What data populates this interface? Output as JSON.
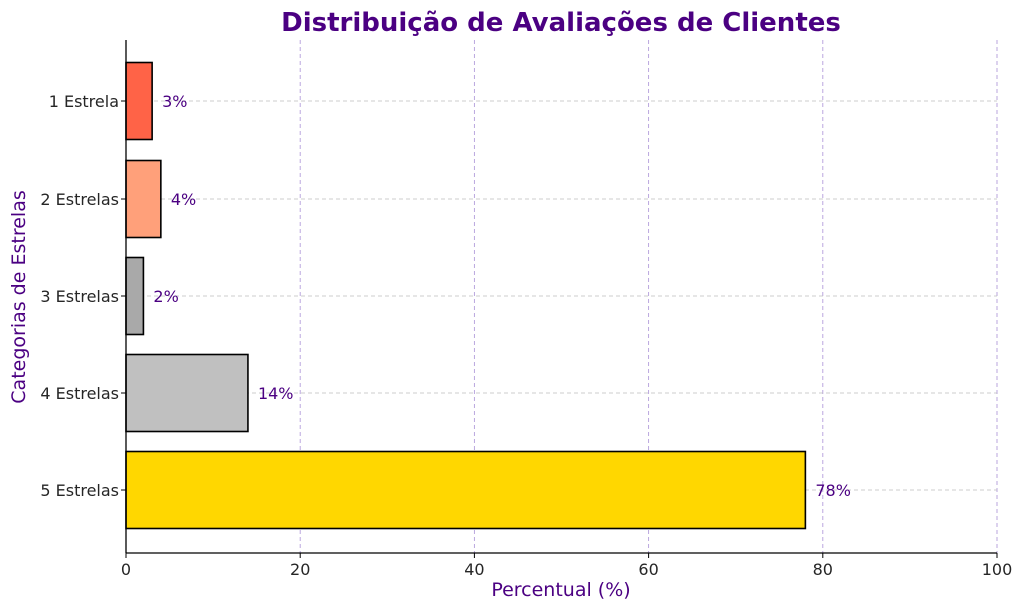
{
  "chart_data": {
    "type": "bar",
    "orientation": "horizontal",
    "title": "Distribuição de Avaliações de Clientes",
    "xlabel": "Percentual (%)",
    "ylabel": "Categorias de Estrelas",
    "xlim": [
      0,
      100
    ],
    "x_ticks": [
      "0",
      "20",
      "40",
      "60",
      "80",
      "100"
    ],
    "grid": true,
    "categories": [
      "1 Estrela",
      "2 Estrelas",
      "3 Estrelas",
      "4 Estrelas",
      "5 Estrelas"
    ],
    "values": [
      3,
      4,
      2,
      14,
      78
    ],
    "data_labels": [
      "3%",
      "4%",
      "2%",
      "14%",
      "78%"
    ],
    "bar_colors": [
      "#FF6347",
      "#FFA07A",
      "#A9A9A9",
      "#C0C0C0",
      "#FFD700"
    ],
    "title_color": "#4B0082",
    "label_color": "#4B0082",
    "grid_color": "#B39DDB"
  }
}
